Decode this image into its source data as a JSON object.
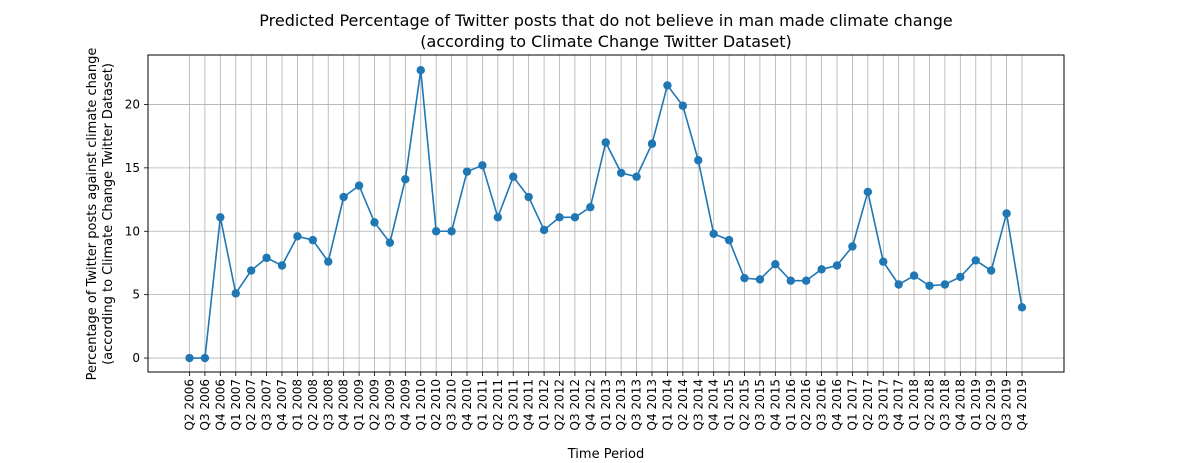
{
  "chart_data": {
    "type": "line",
    "title": "Predicted Percentage of Twitter posts that do not believe in man made climate change",
    "subtitle": "(according to Climate Change Twitter Dataset)",
    "xlabel": "Time Period",
    "ylabel": "Percentage of Twitter posts against climate change",
    "ylabel2": "(according to Climate Change Twitter Dataset)",
    "ylim": [
      -1.1,
      23.9
    ],
    "yticks": [
      0,
      5,
      10,
      15,
      20
    ],
    "grid": true,
    "color": "#1f77b4",
    "categories": [
      "Q2 2006",
      "Q3 2006",
      "Q4 2006",
      "Q1 2007",
      "Q2 2007",
      "Q3 2007",
      "Q4 2007",
      "Q1 2008",
      "Q2 2008",
      "Q3 2008",
      "Q4 2008",
      "Q1 2009",
      "Q2 2009",
      "Q3 2009",
      "Q4 2009",
      "Q1 2010",
      "Q2 2010",
      "Q3 2010",
      "Q4 2010",
      "Q1 2011",
      "Q2 2011",
      "Q3 2011",
      "Q4 2011",
      "Q1 2012",
      "Q2 2012",
      "Q3 2012",
      "Q4 2012",
      "Q1 2013",
      "Q2 2013",
      "Q3 2013",
      "Q4 2013",
      "Q1 2014",
      "Q2 2014",
      "Q3 2014",
      "Q4 2014",
      "Q1 2015",
      "Q2 2015",
      "Q3 2015",
      "Q4 2015",
      "Q1 2016",
      "Q2 2016",
      "Q3 2016",
      "Q4 2016",
      "Q1 2017",
      "Q2 2017",
      "Q3 2017",
      "Q4 2017",
      "Q1 2018",
      "Q2 2018",
      "Q3 2018",
      "Q4 2018",
      "Q1 2019",
      "Q2 2019",
      "Q3 2019",
      "Q4 2019"
    ],
    "values": [
      0.0,
      0.0,
      11.1,
      5.1,
      6.9,
      7.9,
      7.3,
      9.6,
      9.3,
      7.6,
      12.7,
      13.6,
      10.7,
      9.1,
      14.1,
      22.7,
      10.0,
      10.0,
      14.7,
      15.2,
      11.1,
      14.3,
      12.7,
      10.1,
      11.1,
      11.1,
      11.9,
      17.0,
      14.6,
      14.3,
      16.9,
      21.5,
      19.9,
      15.6,
      9.8,
      9.3,
      6.3,
      6.2,
      7.4,
      6.1,
      6.1,
      7.0,
      7.3,
      8.8,
      13.1,
      7.6,
      5.8,
      6.5,
      5.7,
      5.8,
      6.4,
      7.7,
      6.9,
      11.4,
      4.0
    ]
  }
}
